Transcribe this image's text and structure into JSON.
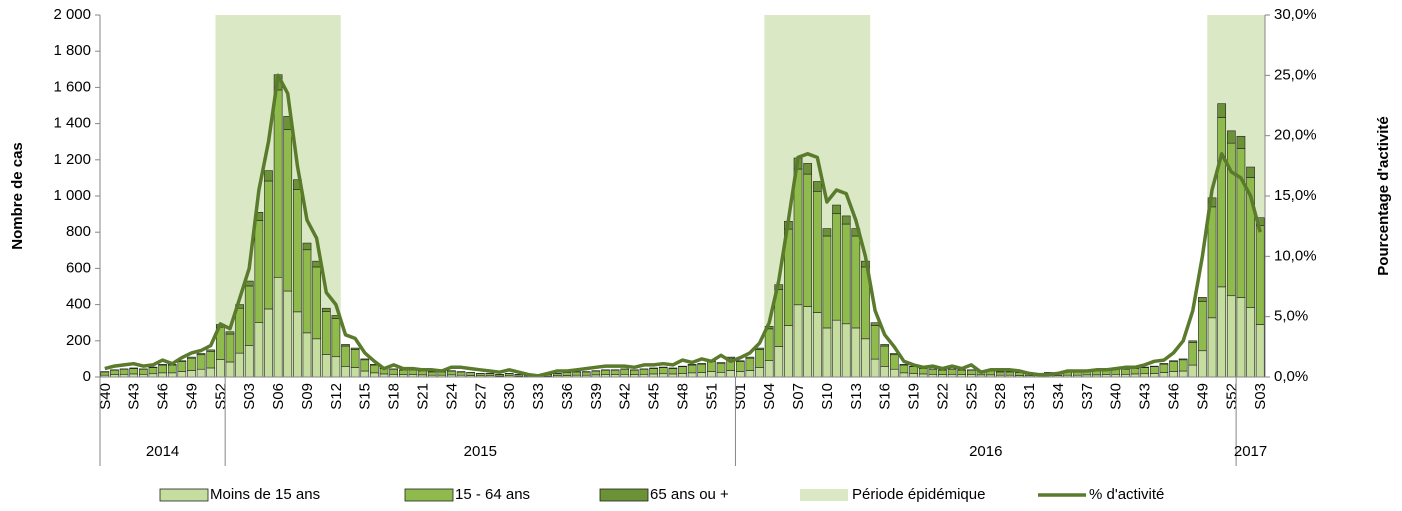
{
  "chart_data": {
    "type": "bar",
    "ylabel": "Nombre de cas",
    "y2label": "Pourcentage d'activité",
    "ylim": [
      0,
      2000
    ],
    "yticks": [
      0,
      200,
      400,
      600,
      800,
      {
        "value": 1000,
        "label": "1 000"
      },
      {
        "value": 1200,
        "label": "1 200"
      },
      {
        "value": 1400,
        "label": "1 400"
      },
      {
        "value": 1600,
        "label": "1 600"
      },
      {
        "value": 1800,
        "label": "1 800"
      },
      {
        "value": 2000,
        "label": "2 000"
      }
    ],
    "y2lim": [
      0,
      30
    ],
    "y2ticks": [
      {
        "value": 0,
        "label": "0,0%"
      },
      {
        "value": 5,
        "label": "5,0%"
      },
      {
        "value": 10,
        "label": "10,0%"
      },
      {
        "value": 15,
        "label": "15,0%"
      },
      {
        "value": 20,
        "label": "20,0%"
      },
      {
        "value": 25,
        "label": "25,0%"
      },
      {
        "value": 30,
        "label": "30,0%"
      }
    ],
    "categories": [
      "S40",
      null,
      null,
      "S43",
      null,
      null,
      "S46",
      null,
      null,
      "S49",
      null,
      null,
      "S52",
      null,
      null,
      "S03",
      null,
      null,
      "S06",
      null,
      null,
      "S09",
      null,
      null,
      "S12",
      null,
      null,
      "S15",
      null,
      null,
      "S18",
      null,
      null,
      "S21",
      null,
      null,
      "S24",
      null,
      null,
      "S27",
      null,
      null,
      "S30",
      null,
      null,
      "S33",
      null,
      null,
      "S36",
      null,
      null,
      "S39",
      null,
      null,
      "S42",
      null,
      null,
      "S45",
      null,
      null,
      "S48",
      null,
      null,
      "S51",
      null,
      null,
      "S01",
      null,
      null,
      "S04",
      null,
      null,
      "S07",
      null,
      null,
      "S10",
      null,
      null,
      "S13",
      null,
      null,
      "S16",
      null,
      null,
      "S19",
      null,
      null,
      "S22",
      null,
      null,
      "S25",
      null,
      null,
      "S28",
      null,
      null,
      "S31",
      null,
      null,
      "S34",
      null,
      null,
      "S37",
      null,
      null,
      "S40",
      null,
      null,
      "S43",
      null,
      null,
      "S46",
      null,
      null,
      "S49",
      null,
      null,
      "S52",
      null,
      null,
      "S03"
    ],
    "groups": [
      {
        "label": "2014",
        "count": 13
      },
      {
        "label": "2015",
        "count": 53
      },
      {
        "label": "2016",
        "count": 52
      },
      {
        "label": "2017",
        "count": 3
      }
    ],
    "period_name": "Période épidémique",
    "period_color": "#dbe8c5",
    "periods": [
      {
        "start": 12,
        "end": 24
      },
      {
        "start": 69,
        "end": 79
      },
      {
        "start": 115,
        "end": 120
      }
    ],
    "series": [
      {
        "name": "Moins de 15 ans",
        "color": "#c5dea0",
        "values": [
          10,
          13,
          15,
          17,
          15,
          18,
          23,
          23,
          30,
          36,
          43,
          50,
          96,
          83,
          132,
          175,
          300,
          376,
          551,
          475,
          360,
          244,
          211,
          125,
          112,
          59,
          53,
          33,
          23,
          17,
          15,
          13,
          13,
          12,
          10,
          10,
          12,
          10,
          8,
          7,
          7,
          5,
          7,
          5,
          3,
          3,
          5,
          7,
          8,
          10,
          10,
          12,
          13,
          13,
          15,
          13,
          15,
          17,
          18,
          17,
          20,
          23,
          25,
          30,
          26,
          36,
          30,
          36,
          53,
          92,
          168,
          284,
          399,
          389,
          356,
          271,
          314,
          294,
          271,
          211,
          99,
          59,
          43,
          23,
          20,
          17,
          15,
          13,
          15,
          13,
          13,
          12,
          12,
          10,
          10,
          8,
          7,
          7,
          8,
          8,
          10,
          10,
          12,
          12,
          13,
          15,
          15,
          17,
          18,
          20,
          25,
          30,
          33,
          66,
          145,
          327,
          498,
          449,
          439,
          383,
          290
        ]
      },
      {
        "name": "15 - 64 ans",
        "color": "#8fbb4c",
        "values": [
          18,
          25,
          28,
          30,
          28,
          34,
          43,
          43,
          55,
          68,
          80,
          92,
          179,
          154,
          248,
          328,
          564,
          707,
          1035,
          893,
          675,
          459,
          397,
          236,
          211,
          112,
          99,
          62,
          43,
          30,
          28,
          25,
          25,
          21,
          18,
          18,
          21,
          18,
          16,
          12,
          12,
          9,
          12,
          9,
          6,
          6,
          9,
          12,
          16,
          18,
          18,
          21,
          25,
          25,
          28,
          25,
          28,
          30,
          34,
          30,
          37,
          43,
          46,
          55,
          50,
          68,
          55,
          68,
          99,
          174,
          316,
          533,
          750,
          732,
          670,
          508,
          588,
          551,
          508,
          397,
          186,
          112,
          80,
          43,
          37,
          30,
          28,
          25,
          28,
          25,
          25,
          21,
          21,
          18,
          18,
          16,
          12,
          12,
          16,
          16,
          18,
          18,
          21,
          21,
          25,
          28,
          28,
          30,
          34,
          37,
          46,
          55,
          62,
          124,
          273,
          613,
          936,
          843,
          824,
          719,
          546
        ]
      },
      {
        "name": "65 ans ou +",
        "color": "#6b9237",
        "values": [
          2,
          2,
          2,
          3,
          2,
          3,
          4,
          4,
          5,
          6,
          7,
          8,
          15,
          13,
          20,
          27,
          46,
          57,
          84,
          72,
          55,
          37,
          32,
          19,
          17,
          9,
          8,
          5,
          4,
          3,
          2,
          2,
          2,
          2,
          2,
          2,
          2,
          2,
          1,
          1,
          1,
          1,
          1,
          1,
          1,
          1,
          1,
          1,
          1,
          2,
          2,
          2,
          2,
          2,
          2,
          2,
          2,
          3,
          3,
          3,
          3,
          4,
          4,
          5,
          4,
          6,
          5,
          6,
          8,
          14,
          26,
          43,
          61,
          59,
          54,
          41,
          48,
          45,
          41,
          32,
          15,
          9,
          7,
          4,
          3,
          3,
          2,
          2,
          2,
          2,
          2,
          2,
          2,
          2,
          2,
          1,
          1,
          1,
          1,
          1,
          2,
          2,
          2,
          2,
          2,
          2,
          2,
          3,
          3,
          3,
          4,
          5,
          5,
          10,
          22,
          50,
          76,
          68,
          67,
          58,
          44
        ]
      }
    ],
    "line": {
      "name": "% d'activité",
      "color": "#5a7a2c",
      "axis": "y2",
      "values": [
        0.7,
        0.9,
        1.0,
        1.1,
        0.9,
        1.0,
        1.4,
        1.1,
        1.6,
        2.0,
        2.2,
        2.6,
        4.4,
        4.0,
        6.5,
        9.0,
        15.5,
        19.5,
        25.0,
        23.5,
        17.5,
        13.0,
        11.5,
        7.0,
        6.0,
        3.5,
        3.2,
        2.0,
        1.3,
        0.7,
        1.0,
        0.7,
        0.7,
        0.6,
        0.6,
        0.5,
        0.8,
        0.8,
        0.7,
        0.6,
        0.5,
        0.4,
        0.6,
        0.4,
        0.2,
        0.1,
        0.3,
        0.5,
        0.5,
        0.6,
        0.7,
        0.8,
        0.9,
        0.9,
        0.9,
        0.8,
        1.0,
        1.0,
        1.1,
        1.0,
        1.4,
        1.2,
        1.5,
        1.3,
        1.8,
        1.3,
        1.6,
        2.0,
        2.8,
        4.5,
        8.0,
        13.0,
        18.2,
        18.5,
        18.2,
        14.5,
        15.5,
        15.2,
        13.0,
        10.0,
        5.5,
        3.5,
        2.5,
        1.3,
        1.0,
        0.8,
        0.9,
        0.7,
        0.9,
        0.7,
        1.0,
        0.4,
        0.6,
        0.6,
        0.6,
        0.5,
        0.3,
        0.2,
        0.2,
        0.3,
        0.5,
        0.5,
        0.5,
        0.6,
        0.6,
        0.7,
        0.8,
        0.8,
        1.0,
        1.3,
        1.4,
        2.0,
        3.0,
        5.5,
        10.0,
        15.5,
        18.5,
        17.0,
        16.5,
        15.0,
        12.0
      ]
    }
  }
}
